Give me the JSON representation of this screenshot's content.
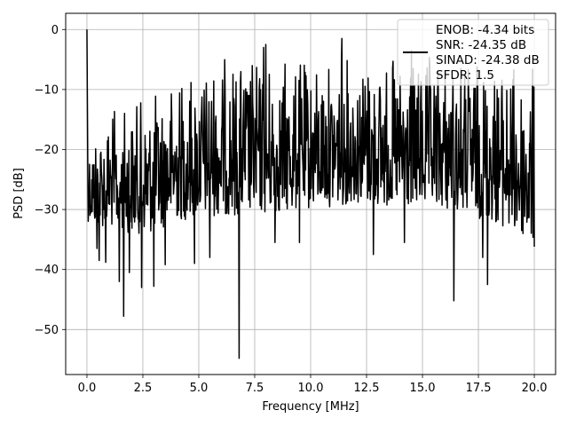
{
  "chart_data": {
    "type": "line",
    "title": "",
    "xlabel": "Frequency [MHz]",
    "ylabel": "PSD [dB]",
    "xlim": [
      -0.95,
      20.95
    ],
    "ylim": [
      -57.5,
      2.7
    ],
    "xticks": [
      0.0,
      2.5,
      5.0,
      7.5,
      10.0,
      12.5,
      15.0,
      17.5,
      20.0
    ],
    "xtick_labels": [
      "0.0",
      "2.5",
      "5.0",
      "7.5",
      "10.0",
      "12.5",
      "15.0",
      "17.5",
      "20.0"
    ],
    "yticks": [
      0,
      -10,
      -20,
      -30,
      -40,
      -50
    ],
    "ytick_labels": [
      "0",
      "−10",
      "−20",
      "−30",
      "−40",
      "−50"
    ],
    "grid": true,
    "legend_position": "top-right",
    "line_color": "#000000",
    "legend_lines": [
      "ENOB: -4.34 bits",
      "SNR: -24.35 dB",
      "SINAD: -24.38 dB",
      "SFDR: 1.5"
    ],
    "series": [
      {
        "x_start": 0.0,
        "x_end": 20.0,
        "points": 1024,
        "envelope_x": [
          0.0,
          0.05,
          0.15,
          0.4,
          1.0,
          2.0,
          3.0,
          4.0,
          6.0,
          8.0,
          10.0,
          12.0,
          14.0,
          16.0,
          18.0,
          20.0
        ],
        "envelope_upper": [
          0.0,
          -16.0,
          -18.0,
          -15.0,
          -13.0,
          -12.0,
          -10.0,
          -7.0,
          -4.0,
          -4.0,
          -5.0,
          -3.0,
          -5.0,
          -4.0,
          -4.0,
          -6.0
        ],
        "envelope_lower": [
          -8.0,
          -32.0,
          -32.0,
          -33.0,
          -33.0,
          -34.0,
          -34.0,
          -32.0,
          -31.0,
          -31.0,
          -30.0,
          -29.0,
          -30.0,
          -30.0,
          -32.0,
          -36.0
        ],
        "dips": [
          {
            "x": 0.45,
            "y": -36.5
          },
          {
            "x": 0.55,
            "y": -38.5
          },
          {
            "x": 0.85,
            "y": -38.8
          },
          {
            "x": 1.45,
            "y": -42.0
          },
          {
            "x": 1.65,
            "y": -47.8
          },
          {
            "x": 1.9,
            "y": -40.5
          },
          {
            "x": 2.45,
            "y": -43.0
          },
          {
            "x": 3.0,
            "y": -42.8
          },
          {
            "x": 3.5,
            "y": -39.2
          },
          {
            "x": 4.8,
            "y": -39.0
          },
          {
            "x": 5.5,
            "y": -38.0
          },
          {
            "x": 6.8,
            "y": -54.8
          },
          {
            "x": 8.4,
            "y": -35.5
          },
          {
            "x": 9.5,
            "y": -35.5
          },
          {
            "x": 12.8,
            "y": -37.5
          },
          {
            "x": 14.2,
            "y": -35.5
          },
          {
            "x": 16.4,
            "y": -45.2
          },
          {
            "x": 17.7,
            "y": -38.0
          },
          {
            "x": 17.9,
            "y": -42.5
          },
          {
            "x": 20.0,
            "y": -36.2
          }
        ],
        "peaks": [
          {
            "x": 0.0,
            "y": 0.0
          },
          {
            "x": 8.0,
            "y": -2.5
          },
          {
            "x": 11.4,
            "y": -1.5
          },
          {
            "x": 7.9,
            "y": -3.0
          },
          {
            "x": 14.5,
            "y": -3.5
          }
        ]
      }
    ]
  }
}
